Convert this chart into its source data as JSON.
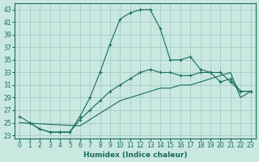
{
  "xlabel": "Humidex (Indice chaleur)",
  "bg_color": "#c8e8e0",
  "grid_color": "#a0c8c0",
  "line_color": "#1a6b5a",
  "xlim": [
    -0.5,
    23.5
  ],
  "ylim": [
    22.5,
    44
  ],
  "xticks": [
    0,
    1,
    2,
    3,
    4,
    5,
    6,
    7,
    8,
    9,
    10,
    11,
    12,
    13,
    14,
    15,
    16,
    17,
    18,
    19,
    20,
    21,
    22,
    23
  ],
  "yticks": [
    23,
    25,
    27,
    29,
    31,
    33,
    35,
    37,
    39,
    41,
    43
  ],
  "line1_x": [
    0,
    1,
    2,
    3,
    4,
    5,
    6,
    7,
    8,
    9,
    10,
    11,
    12,
    13,
    14,
    15,
    16,
    17,
    18,
    19,
    20,
    21,
    22,
    23
  ],
  "line1_y": [
    26.0,
    25.0,
    24.0,
    23.5,
    23.5,
    23.5,
    26.0,
    29.0,
    33.0,
    37.5,
    41.5,
    42.5,
    43.0,
    43.0,
    40.0,
    35.0,
    35.0,
    35.5,
    33.5,
    33.0,
    31.5,
    32.0,
    30.0,
    30.0
  ],
  "line2_x": [
    1,
    2,
    3,
    4,
    5,
    6,
    7,
    8,
    9,
    10,
    11,
    12,
    13,
    14,
    15,
    16,
    17,
    18,
    19,
    20,
    21,
    22,
    23
  ],
  "line2_y": [
    25.0,
    24.0,
    23.5,
    23.5,
    23.5,
    25.5,
    27.0,
    28.5,
    30.0,
    31.0,
    32.0,
    33.0,
    33.5,
    33.0,
    33.0,
    32.5,
    32.5,
    33.0,
    33.0,
    33.0,
    31.5,
    30.0,
    30.0
  ],
  "line3_x": [
    0,
    6,
    7,
    8,
    9,
    10,
    11,
    12,
    13,
    14,
    15,
    16,
    17,
    18,
    19,
    20,
    21,
    22,
    23
  ],
  "line3_y": [
    25.0,
    24.5,
    25.5,
    26.5,
    27.5,
    28.5,
    29.0,
    29.5,
    30.0,
    30.5,
    30.5,
    31.0,
    31.0,
    31.5,
    32.0,
    32.5,
    33.0,
    29.0,
    30.0
  ]
}
